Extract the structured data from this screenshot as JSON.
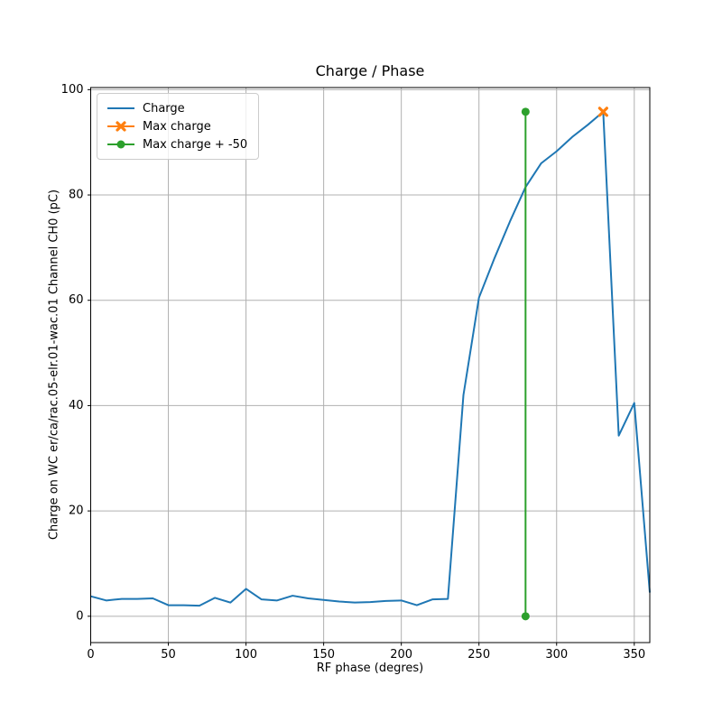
{
  "title": "Charge / Phase",
  "chart_data": {
    "type": "line",
    "title": "Charge / Phase",
    "xlabel": "RF phase (degres)",
    "ylabel": "Charge on WC er/ca/rac.05-elr.01-wac.01 Channel CH0 (pC)",
    "xlim": [
      0,
      360
    ],
    "ylim": [
      -5,
      100.4
    ],
    "x_ticks": [
      0,
      50,
      100,
      150,
      200,
      250,
      300,
      350
    ],
    "y_ticks": [
      0,
      20,
      40,
      60,
      80,
      100
    ],
    "grid": true,
    "legend_position": "upper-left",
    "grid_color": "#b0b0b0",
    "spine_color": "#000000",
    "text_color": "#000000",
    "series": [
      {
        "name": "Charge",
        "color": "#1f77b4",
        "marker": "none",
        "x": [
          0,
          10,
          20,
          30,
          40,
          50,
          60,
          70,
          80,
          90,
          100,
          110,
          120,
          130,
          140,
          150,
          160,
          170,
          180,
          190,
          200,
          210,
          220,
          230,
          240,
          250,
          260,
          270,
          280,
          290,
          300,
          310,
          320,
          330,
          340,
          350,
          360
        ],
        "y": [
          3.8,
          3.0,
          3.3,
          3.3,
          3.4,
          2.1,
          2.1,
          2.0,
          3.5,
          2.6,
          5.2,
          3.2,
          3.0,
          3.9,
          3.4,
          3.1,
          2.8,
          2.6,
          2.7,
          2.9,
          3.0,
          2.1,
          3.2,
          3.3,
          42.0,
          60.5,
          68.0,
          75.0,
          81.5,
          86.0,
          88.3,
          91.0,
          93.3,
          95.8,
          34.3,
          40.5,
          4.5
        ]
      },
      {
        "name": "Max charge",
        "color": "#ff7f0e",
        "marker": "X",
        "x": [
          330
        ],
        "y": [
          95.8
        ]
      },
      {
        "name": "Max charge + -50",
        "color": "#2ca02c",
        "marker": "circle",
        "x": [
          280,
          280
        ],
        "y": [
          95.8,
          0
        ]
      }
    ]
  }
}
